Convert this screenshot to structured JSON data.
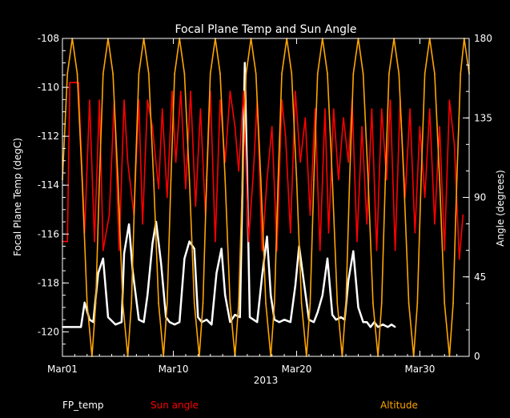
{
  "chart_data": {
    "type": "line",
    "title": "Focal Plane Temp and Sun Angle",
    "xlabel": "2013",
    "ylabel": "Focal Plane Temp (degC)",
    "y2label": "Angle (degrees)",
    "xlim": [
      0,
      33
    ],
    "ylim": [
      -121,
      -108
    ],
    "y2lim": [
      0,
      180
    ],
    "x_ticks": [
      {
        "day": 0,
        "label": "Mar01"
      },
      {
        "day": 9,
        "label": "Mar10"
      },
      {
        "day": 19,
        "label": "Mar20"
      },
      {
        "day": 29,
        "label": "Mar30"
      }
    ],
    "y_ticks": [
      {
        "value": -108,
        "label": "-108"
      },
      {
        "value": -110,
        "label": "-110"
      },
      {
        "value": -112,
        "label": "-112"
      },
      {
        "value": -114,
        "label": "-114"
      },
      {
        "value": -116,
        "label": "-116"
      },
      {
        "value": -118,
        "label": "-118"
      },
      {
        "value": -120,
        "label": "-120"
      }
    ],
    "y2_ticks": [
      {
        "value": 0,
        "label": "0"
      },
      {
        "value": 45,
        "label": "45"
      },
      {
        "value": 90,
        "label": "90"
      },
      {
        "value": 135,
        "label": "135"
      },
      {
        "value": 180,
        "label": "180"
      }
    ],
    "legend": [
      {
        "name": "FP_temp",
        "color": "#ffffff"
      },
      {
        "name": "Sun angle",
        "color": "#ff0000"
      },
      {
        "name": "Altitude",
        "color": "#ffa500"
      }
    ],
    "series": [
      {
        "name": "FP_temp",
        "axis": "left",
        "color": "#ffffff",
        "x": [
          0.0,
          1.5,
          1.8,
          2.2,
          2.5,
          2.9,
          3.3,
          3.7,
          4.3,
          4.8,
          5.0,
          5.4,
          5.7,
          6.2,
          6.6,
          6.9,
          7.3,
          7.6,
          8.0,
          8.4,
          8.7,
          9.1,
          9.5,
          9.9,
          10.3,
          10.7,
          11.0,
          11.3,
          11.7,
          12.1,
          12.5,
          12.9,
          13.2,
          13.6,
          14.0,
          14.4,
          14.8,
          15.2,
          15.5,
          15.8,
          16.2,
          16.6,
          16.9,
          17.2,
          17.6,
          18.0,
          18.5,
          18.9,
          19.2,
          19.6,
          20.0,
          20.4,
          20.7,
          21.1,
          21.5,
          21.9,
          22.2,
          22.6,
          22.9,
          23.2,
          23.6,
          24.0,
          24.4,
          24.7,
          25.0,
          25.3,
          25.6,
          26.0,
          26.4,
          26.7,
          27.0
        ],
        "values": [
          -119.8,
          -119.8,
          -118.8,
          -119.5,
          -119.6,
          -117.6,
          -117.0,
          -119.4,
          -119.7,
          -119.6,
          -116.8,
          -115.6,
          -117.5,
          -119.5,
          -119.6,
          -118.5,
          -116.4,
          -115.5,
          -117.2,
          -119.4,
          -119.6,
          -119.7,
          -119.6,
          -117.0,
          -116.3,
          -116.6,
          -119.4,
          -119.6,
          -119.5,
          -119.7,
          -117.6,
          -116.6,
          -118.5,
          -119.6,
          -119.3,
          -119.4,
          -109.0,
          -119.4,
          -119.5,
          -119.6,
          -117.7,
          -116.1,
          -118.5,
          -119.5,
          -119.6,
          -119.5,
          -119.6,
          -118.1,
          -116.5,
          -118.0,
          -119.5,
          -119.6,
          -119.2,
          -118.5,
          -117.0,
          -119.3,
          -119.5,
          -119.4,
          -119.5,
          -117.9,
          -116.7,
          -119.0,
          -119.6,
          -119.6,
          -119.8,
          -119.6,
          -119.8,
          -119.7,
          -119.8,
          -119.7,
          -119.8
        ]
      },
      {
        "name": "Sun angle",
        "axis": "right",
        "color": "#ff0000",
        "x": [
          0.0,
          0.4,
          0.6,
          1.0,
          1.3,
          1.8,
          2.2,
          2.6,
          3.0,
          3.3,
          3.8,
          4.2,
          4.6,
          5.0,
          5.3,
          5.8,
          6.2,
          6.5,
          6.9,
          7.3,
          7.8,
          8.1,
          8.5,
          8.9,
          9.2,
          9.6,
          10.0,
          10.4,
          10.8,
          11.2,
          11.6,
          12.0,
          12.4,
          12.8,
          13.2,
          13.6,
          14.0,
          14.3,
          14.7,
          15.1,
          15.5,
          15.8,
          16.2,
          16.6,
          17.0,
          17.4,
          17.8,
          18.1,
          18.5,
          18.9,
          19.3,
          19.7,
          20.1,
          20.5,
          20.9,
          21.3,
          21.6,
          22.0,
          22.4,
          22.8,
          23.2,
          23.5,
          23.9,
          24.3,
          24.7,
          25.1,
          25.5,
          25.9,
          26.3,
          26.6,
          27.0,
          27.4,
          27.8,
          28.2,
          28.6,
          29.0,
          29.4,
          29.8,
          30.2,
          30.6,
          31.0,
          31.4,
          31.8,
          32.2,
          32.5
        ],
        "values": [
          65,
          65,
          155,
          155,
          155,
          70,
          145,
          65,
          145,
          60,
          80,
          145,
          60,
          145,
          110,
          80,
          145,
          75,
          145,
          130,
          95,
          140,
          90,
          150,
          110,
          150,
          95,
          150,
          85,
          140,
          80,
          150,
          65,
          145,
          110,
          150,
          130,
          105,
          150,
          65,
          105,
          145,
          60,
          100,
          130,
          60,
          145,
          125,
          70,
          150,
          110,
          135,
          80,
          140,
          60,
          140,
          70,
          140,
          100,
          135,
          110,
          145,
          65,
          130,
          75,
          140,
          60,
          140,
          100,
          145,
          60,
          145,
          90,
          140,
          70,
          130,
          90,
          140,
          75,
          130,
          60,
          145,
          120,
          55,
          80
        ]
      },
      {
        "name": "Altitude",
        "axis": "right",
        "color": "#ffa500",
        "x": [
          0.0,
          0.4,
          0.8,
          1.2,
          1.6,
          2.0,
          2.4,
          2.7,
          3.0,
          3.3,
          3.7,
          4.1,
          4.5,
          4.9,
          5.3,
          5.6,
          5.9,
          6.2,
          6.6,
          7.0,
          7.4,
          7.8,
          8.2,
          8.5,
          8.8,
          9.1,
          9.5,
          9.9,
          10.3,
          10.7,
          11.1,
          11.4,
          11.7,
          12.0,
          12.4,
          12.8,
          13.2,
          13.6,
          14.0,
          14.3,
          14.6,
          14.9,
          15.3,
          15.7,
          16.1,
          16.5,
          16.9,
          17.2,
          17.5,
          17.8,
          18.2,
          18.6,
          19.0,
          19.4,
          19.8,
          20.1,
          20.4,
          20.7,
          21.1,
          21.5,
          21.9,
          22.3,
          22.7,
          23.0,
          23.3,
          23.6,
          24.0,
          24.4,
          24.8,
          25.2,
          25.6,
          25.9,
          26.2,
          26.5,
          26.9,
          27.3,
          27.7,
          28.1,
          28.5,
          28.8,
          29.1,
          29.4,
          29.8,
          30.2,
          30.6,
          31.0,
          31.4,
          31.7,
          32.0,
          32.3,
          32.6,
          33.0
        ],
        "values": [
          100,
          160,
          180,
          160,
          100,
          30,
          0,
          30,
          100,
          160,
          180,
          160,
          100,
          30,
          0,
          30,
          100,
          160,
          180,
          160,
          100,
          30,
          0,
          30,
          100,
          160,
          180,
          160,
          100,
          30,
          0,
          30,
          100,
          160,
          180,
          160,
          100,
          30,
          0,
          30,
          100,
          160,
          180,
          160,
          100,
          30,
          0,
          30,
          100,
          160,
          180,
          160,
          100,
          30,
          0,
          30,
          100,
          160,
          180,
          160,
          100,
          30,
          0,
          30,
          100,
          160,
          180,
          160,
          100,
          30,
          0,
          30,
          100,
          160,
          180,
          160,
          100,
          30,
          0,
          30,
          100,
          160,
          180,
          160,
          100,
          30,
          0,
          30,
          100,
          160,
          180,
          160
        ]
      }
    ]
  }
}
